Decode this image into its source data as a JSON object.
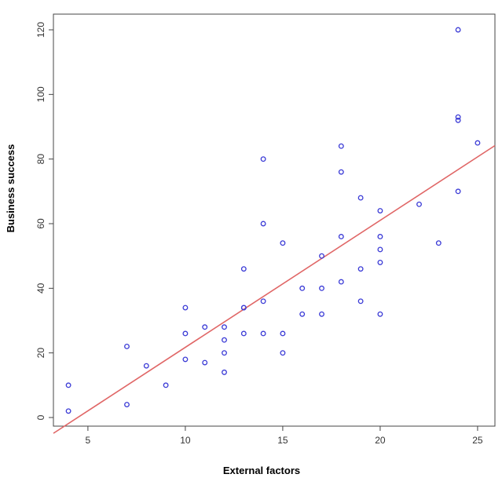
{
  "chart_data": {
    "type": "scatter",
    "x_label": "External factors",
    "y_label": "Business success",
    "series": [
      {
        "color": "#3b3bd6",
        "x": [
          4,
          4,
          7,
          7,
          8,
          9,
          10,
          10,
          10,
          11,
          11,
          12,
          12,
          12,
          12,
          13,
          13,
          13,
          13,
          14,
          14,
          14,
          14,
          15,
          15,
          15,
          16,
          16,
          17,
          17,
          17,
          18,
          18,
          18,
          18,
          19,
          19,
          19,
          20,
          20,
          20,
          20,
          20,
          22,
          23,
          24,
          24,
          24,
          24,
          25
        ],
        "values": [
          2,
          10,
          4,
          22,
          16,
          10,
          18,
          26,
          34,
          17,
          28,
          14,
          20,
          24,
          28,
          26,
          34,
          34,
          46,
          26,
          36,
          60,
          80,
          20,
          26,
          54,
          32,
          40,
          32,
          40,
          50,
          42,
          56,
          76,
          84,
          36,
          46,
          68,
          32,
          48,
          52,
          56,
          64,
          66,
          54,
          70,
          92,
          93,
          120,
          85
        ]
      }
    ],
    "trend_line": {
      "color": "#e06666",
      "intercept": -17.58,
      "slope": 3.93
    },
    "xlim": [
      3.23,
      25.89
    ],
    "xticks": [
      5,
      10,
      15,
      20,
      25
    ],
    "ylim": [
      -2.67,
      124.86
    ],
    "yticks": [
      0,
      20,
      40,
      60,
      80,
      100,
      120
    ]
  }
}
